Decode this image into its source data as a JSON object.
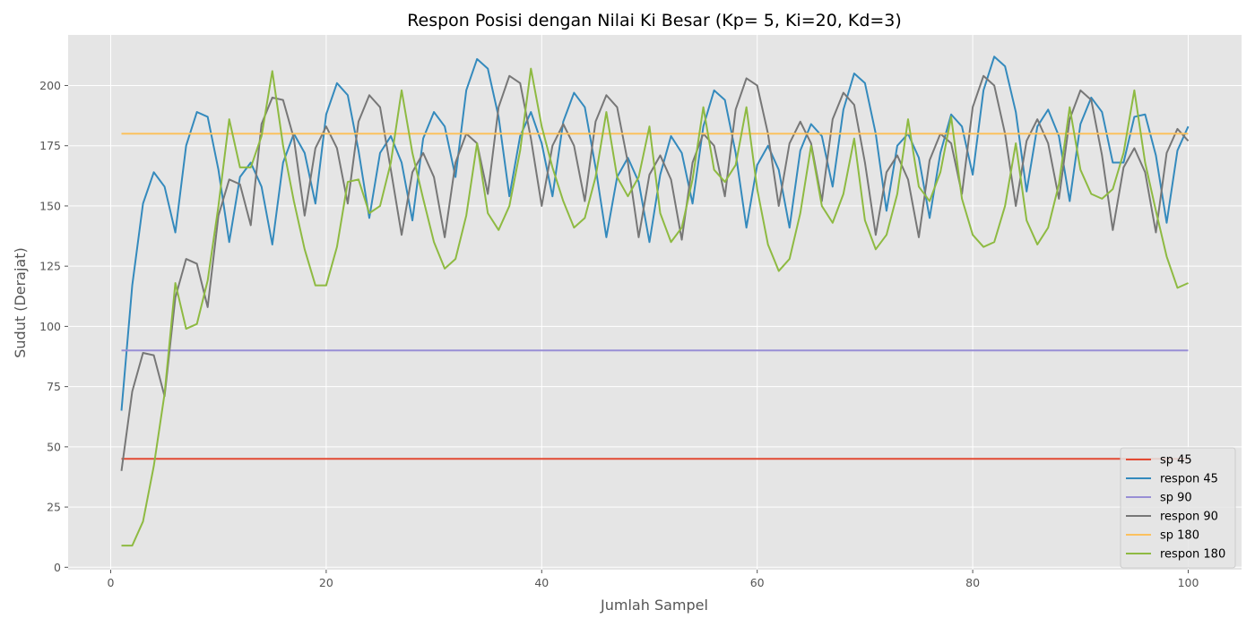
{
  "chart_data": {
    "type": "line",
    "title": "Respon Posisi dengan Nilai Ki Besar (Kp= 5, Ki=20, Kd=3)",
    "xlabel": "Jumlah Sampel",
    "ylabel": "Sudut (Derajat)",
    "xlim": [
      -3.95,
      104.95
    ],
    "ylim": [
      -1,
      221
    ],
    "xticks": [
      0,
      20,
      40,
      60,
      80,
      100
    ],
    "yticks": [
      0,
      25,
      50,
      75,
      100,
      125,
      150,
      175,
      200
    ],
    "grid": true,
    "legend_position": "bottom-right",
    "x": [
      1,
      2,
      3,
      4,
      5,
      6,
      7,
      8,
      9,
      10,
      11,
      12,
      13,
      14,
      15,
      16,
      17,
      18,
      19,
      20,
      21,
      22,
      23,
      24,
      25,
      26,
      27,
      28,
      29,
      30,
      31,
      32,
      33,
      34,
      35,
      36,
      37,
      38,
      39,
      40,
      41,
      42,
      43,
      44,
      45,
      46,
      47,
      48,
      49,
      50,
      51,
      52,
      53,
      54,
      55,
      56,
      57,
      58,
      59,
      60,
      61,
      62,
      63,
      64,
      65,
      66,
      67,
      68,
      69,
      70,
      71,
      72,
      73,
      74,
      75,
      76,
      77,
      78,
      79,
      80,
      81,
      82,
      83,
      84,
      85,
      86,
      87,
      88,
      89,
      90,
      91,
      92,
      93,
      94,
      95,
      96,
      97,
      98,
      99,
      100
    ],
    "series": [
      {
        "name": "sp 45",
        "color": "#E24A33",
        "constant": 45
      },
      {
        "name": "respon 45",
        "color": "#348ABD",
        "values": [
          65,
          117,
          151,
          164,
          158,
          139,
          175,
          189,
          187,
          165,
          135,
          162,
          168,
          158,
          134,
          168,
          180,
          172,
          151,
          188,
          201,
          196,
          173,
          145,
          172,
          179,
          168,
          144,
          178,
          189,
          183,
          162,
          198,
          211,
          207,
          187,
          154,
          179,
          189,
          176,
          154,
          185,
          197,
          191,
          166,
          137,
          162,
          170,
          160,
          135,
          163,
          179,
          172,
          151,
          183,
          198,
          194,
          172,
          141,
          167,
          175,
          165,
          141,
          173,
          184,
          179,
          158,
          190,
          205,
          201,
          180,
          148,
          175,
          180,
          170,
          145,
          172,
          188,
          183,
          163,
          198,
          212,
          208,
          189,
          156,
          183,
          190,
          179,
          152,
          184,
          195,
          189,
          168,
          168,
          187,
          188,
          171,
          143,
          173,
          183
        ]
      },
      {
        "name": "sp 90",
        "color": "#988ED5",
        "constant": 90
      },
      {
        "name": "respon 90",
        "color": "#777777",
        "values": [
          40,
          73,
          89,
          88,
          71,
          112,
          128,
          126,
          108,
          146,
          161,
          159,
          142,
          184,
          195,
          194,
          178,
          146,
          174,
          183,
          174,
          151,
          185,
          196,
          191,
          165,
          138,
          164,
          172,
          162,
          137,
          168,
          180,
          176,
          155,
          191,
          204,
          201,
          178,
          150,
          175,
          184,
          175,
          152,
          185,
          196,
          191,
          168,
          137,
          163,
          171,
          161,
          136,
          168,
          180,
          175,
          154,
          190,
          203,
          200,
          180,
          150,
          176,
          185,
          176,
          152,
          186,
          197,
          192,
          168,
          138,
          164,
          171,
          161,
          137,
          169,
          180,
          176,
          155,
          191,
          204,
          200,
          180,
          150,
          177,
          186,
          176,
          153,
          186,
          198,
          194,
          171,
          140,
          166,
          174,
          164,
          139,
          172,
          182,
          177
        ]
      },
      {
        "name": "sp 180",
        "color": "#FBC15E",
        "constant": 180
      },
      {
        "name": "respon 180",
        "color": "#8EBA42",
        "values": [
          9,
          9,
          19,
          42,
          72,
          118,
          99,
          101,
          119,
          150,
          186,
          166,
          166,
          179,
          206,
          175,
          152,
          132,
          117,
          117,
          133,
          160,
          161,
          147,
          150,
          168,
          198,
          172,
          153,
          135,
          124,
          128,
          146,
          176,
          147,
          140,
          150,
          173,
          207,
          183,
          166,
          152,
          141,
          145,
          162,
          189,
          162,
          154,
          162,
          183,
          147,
          135,
          141,
          161,
          191,
          165,
          160,
          167,
          191,
          157,
          134,
          123,
          128,
          147,
          175,
          150,
          143,
          155,
          178,
          144,
          132,
          138,
          155,
          186,
          158,
          152,
          164,
          187,
          153,
          138,
          133,
          135,
          150,
          176,
          144,
          134,
          141,
          159,
          191,
          165,
          155,
          153,
          157,
          172,
          198,
          168,
          148,
          129,
          116,
          118
        ]
      }
    ]
  }
}
